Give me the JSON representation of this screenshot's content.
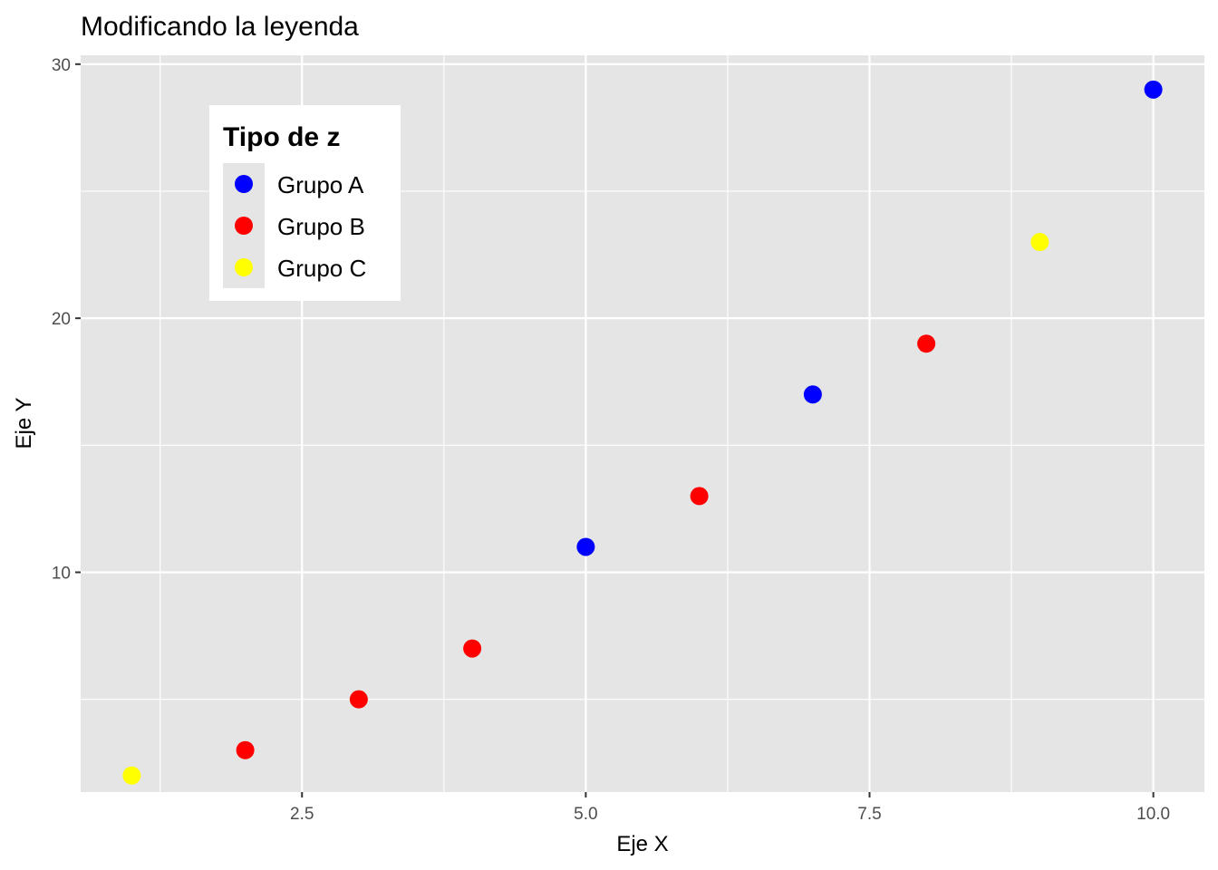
{
  "chart_data": {
    "type": "scatter",
    "title": "Modificando la leyenda",
    "xlabel": "Eje X",
    "ylabel": "Eje Y",
    "xlim": [
      0.55,
      10.45
    ],
    "ylim": [
      1.35,
      30.35
    ],
    "x_ticks": [
      2.5,
      5.0,
      7.5,
      10.0
    ],
    "x_tick_labels": [
      "2.5",
      "5.0",
      "7.5",
      "10.0"
    ],
    "x_minor_ticks": [
      1.25,
      3.75,
      6.25,
      8.75
    ],
    "y_ticks": [
      10,
      20,
      30
    ],
    "y_tick_labels": [
      "10",
      "20",
      "30"
    ],
    "y_minor_ticks": [
      5,
      15,
      25
    ],
    "grid": true,
    "background": "#e5e5e5",
    "legend": {
      "title": "Tipo de z",
      "placement": "top-left inside"
    },
    "series": [
      {
        "name": "Grupo A",
        "color": "#0000ff",
        "x": [
          5,
          7,
          10
        ],
        "y": [
          11,
          17,
          29
        ]
      },
      {
        "name": "Grupo B",
        "color": "#ff0000",
        "x": [
          2,
          3,
          4,
          6,
          8
        ],
        "y": [
          3,
          5,
          7,
          13,
          19
        ]
      },
      {
        "name": "Grupo C",
        "color": "#ffff00",
        "x": [
          1,
          9
        ],
        "y": [
          2,
          23
        ]
      }
    ]
  }
}
